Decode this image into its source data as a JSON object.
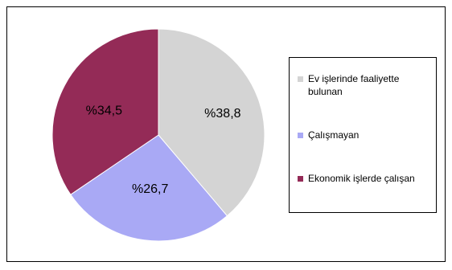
{
  "chart_data": {
    "type": "pie",
    "slices": [
      {
        "label": "Ev işlerinde faaliyette bulunan",
        "value": 38.8,
        "display": "%38,8",
        "color": "#d4d4d4"
      },
      {
        "label": "Çalışmayan",
        "value": 26.7,
        "display": "%26,7",
        "color": "#a9a9f5"
      },
      {
        "label": "Ekonomik işlerde çalışan",
        "value": 34.5,
        "display": "%34,5",
        "color": "#942b57"
      }
    ],
    "legend_position": "right"
  }
}
